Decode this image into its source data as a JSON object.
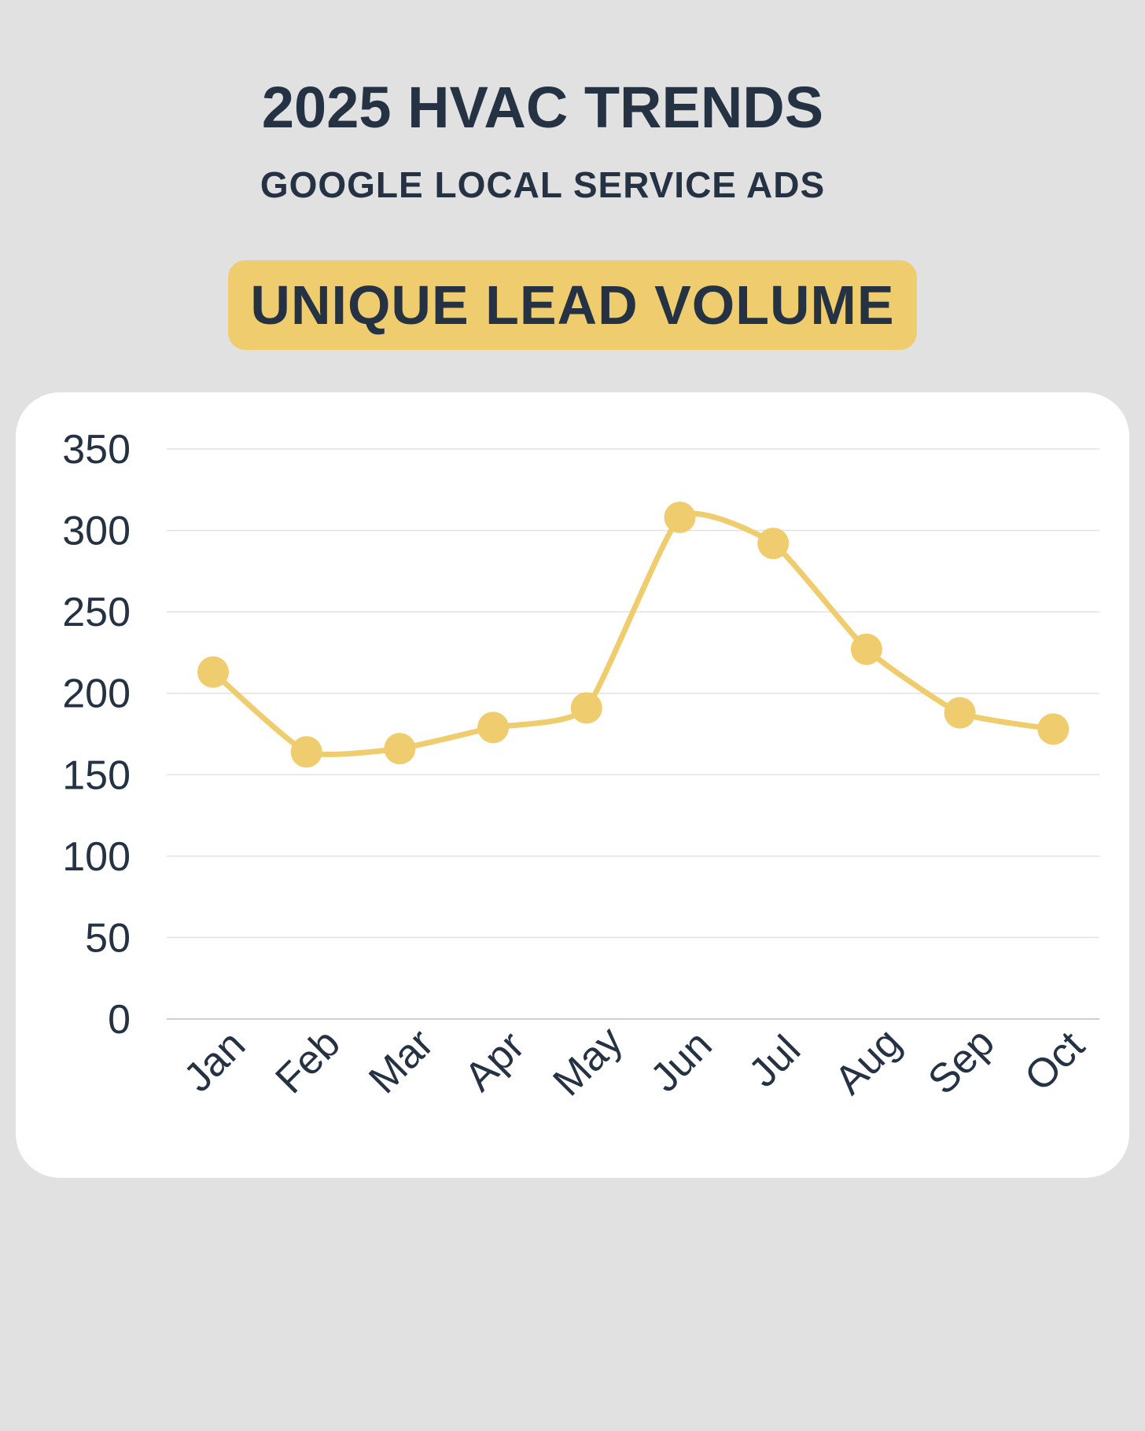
{
  "header": {
    "title": "2025 HVAC TRENDS",
    "subtitle": "GOOGLE LOCAL SERVICE ADS",
    "badge": "UNIQUE LEAD VOLUME"
  },
  "colors": {
    "background": "#e1e1e1",
    "text": "#253244",
    "accent": "#efcd6e",
    "grid": "#e2e2e2",
    "card": "#ffffff"
  },
  "chart_data": {
    "type": "line",
    "title": "UNIQUE LEAD VOLUME",
    "xlabel": "",
    "ylabel": "",
    "categories": [
      "Jan",
      "Feb",
      "Mar",
      "Apr",
      "May",
      "Jun",
      "Jul",
      "Aug",
      "Sep",
      "Oct"
    ],
    "series": [
      {
        "name": "Unique Lead Volume",
        "values": [
          213,
          164,
          166,
          179,
          191,
          308,
          292,
          227,
          188,
          178
        ]
      }
    ],
    "yticks": [
      0,
      50,
      100,
      150,
      200,
      250,
      300,
      350
    ],
    "ylim": [
      0,
      350
    ],
    "grid": true,
    "smooth": true,
    "markers": true,
    "legend": "none"
  }
}
